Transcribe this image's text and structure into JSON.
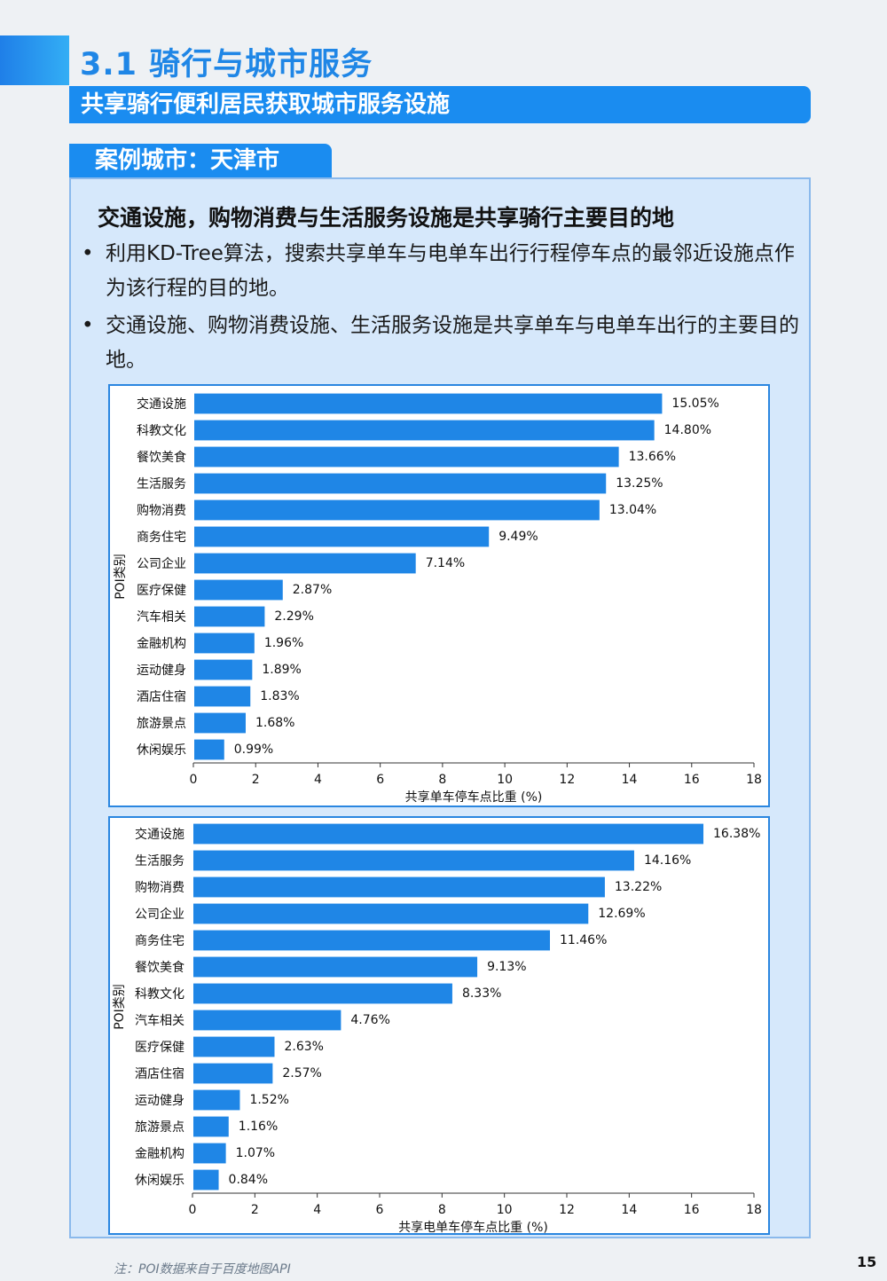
{
  "header": {
    "section_title": "3.1 骑行与城市服务",
    "subtitle": "共享骑行便利居民获取城市服务设施",
    "case_tag": "案例城市：天津市"
  },
  "content": {
    "headline": "交通设施，购物消费与生活服务设施是共享骑行主要目的地",
    "bullets": [
      "利用KD-Tree算法，搜索共享单车与电单车出行行程停车点的最邻近设施点作为该行程的目的地。",
      "交通设施、购物消费设施、生活服务设施是共享单车与电单车出行的主要目的地。"
    ]
  },
  "colors": {
    "accent": "#1a8cf0",
    "bar": "#1f86e6",
    "box_bg": "#d6e8fb"
  },
  "chart_data": [
    {
      "type": "bar",
      "orientation": "horizontal",
      "ylabel": "POI类别",
      "xlabel": "共享单车停车点比重 (%)",
      "xlim": [
        0,
        18
      ],
      "xticks": [
        0,
        2,
        4,
        6,
        8,
        10,
        12,
        14,
        16,
        18
      ],
      "categories": [
        "交通设施",
        "科教文化",
        "餐饮美食",
        "生活服务",
        "购物消费",
        "商务住宅",
        "公司企业",
        "医疗保健",
        "汽车相关",
        "金融机构",
        "运动健身",
        "酒店住宿",
        "旅游景点",
        "休闲娱乐"
      ],
      "values": [
        15.05,
        14.8,
        13.66,
        13.25,
        13.04,
        9.49,
        7.14,
        2.87,
        2.29,
        1.96,
        1.89,
        1.83,
        1.68,
        0.99
      ],
      "labels": [
        "15.05%",
        "14.80%",
        "13.66%",
        "13.25%",
        "13.04%",
        "9.49%",
        "7.14%",
        "2.87%",
        "2.29%",
        "1.96%",
        "1.89%",
        "1.83%",
        "1.68%",
        "0.99%"
      ]
    },
    {
      "type": "bar",
      "orientation": "horizontal",
      "ylabel": "POI类别",
      "xlabel": "共享电单车停车点比重 (%)",
      "xlim": [
        0,
        18
      ],
      "xticks": [
        0,
        2,
        4,
        6,
        8,
        10,
        12,
        14,
        16,
        18
      ],
      "categories": [
        "交通设施",
        "生活服务",
        "购物消费",
        "公司企业",
        "商务住宅",
        "餐饮美食",
        "科教文化",
        "汽车相关",
        "医疗保健",
        "酒店住宿",
        "运动健身",
        "旅游景点",
        "金融机构",
        "休闲娱乐"
      ],
      "values": [
        16.38,
        14.16,
        13.22,
        12.69,
        11.46,
        9.13,
        8.33,
        4.76,
        2.63,
        2.57,
        1.52,
        1.16,
        1.07,
        0.84
      ],
      "labels": [
        "16.38%",
        "14.16%",
        "13.22%",
        "12.69%",
        "11.46%",
        "9.13%",
        "8.33%",
        "4.76%",
        "2.63%",
        "2.57%",
        "1.52%",
        "1.16%",
        "1.07%",
        "0.84%"
      ]
    }
  ],
  "footer": {
    "note": "注：POI数据来自于百度地图API",
    "page_number": "15"
  }
}
